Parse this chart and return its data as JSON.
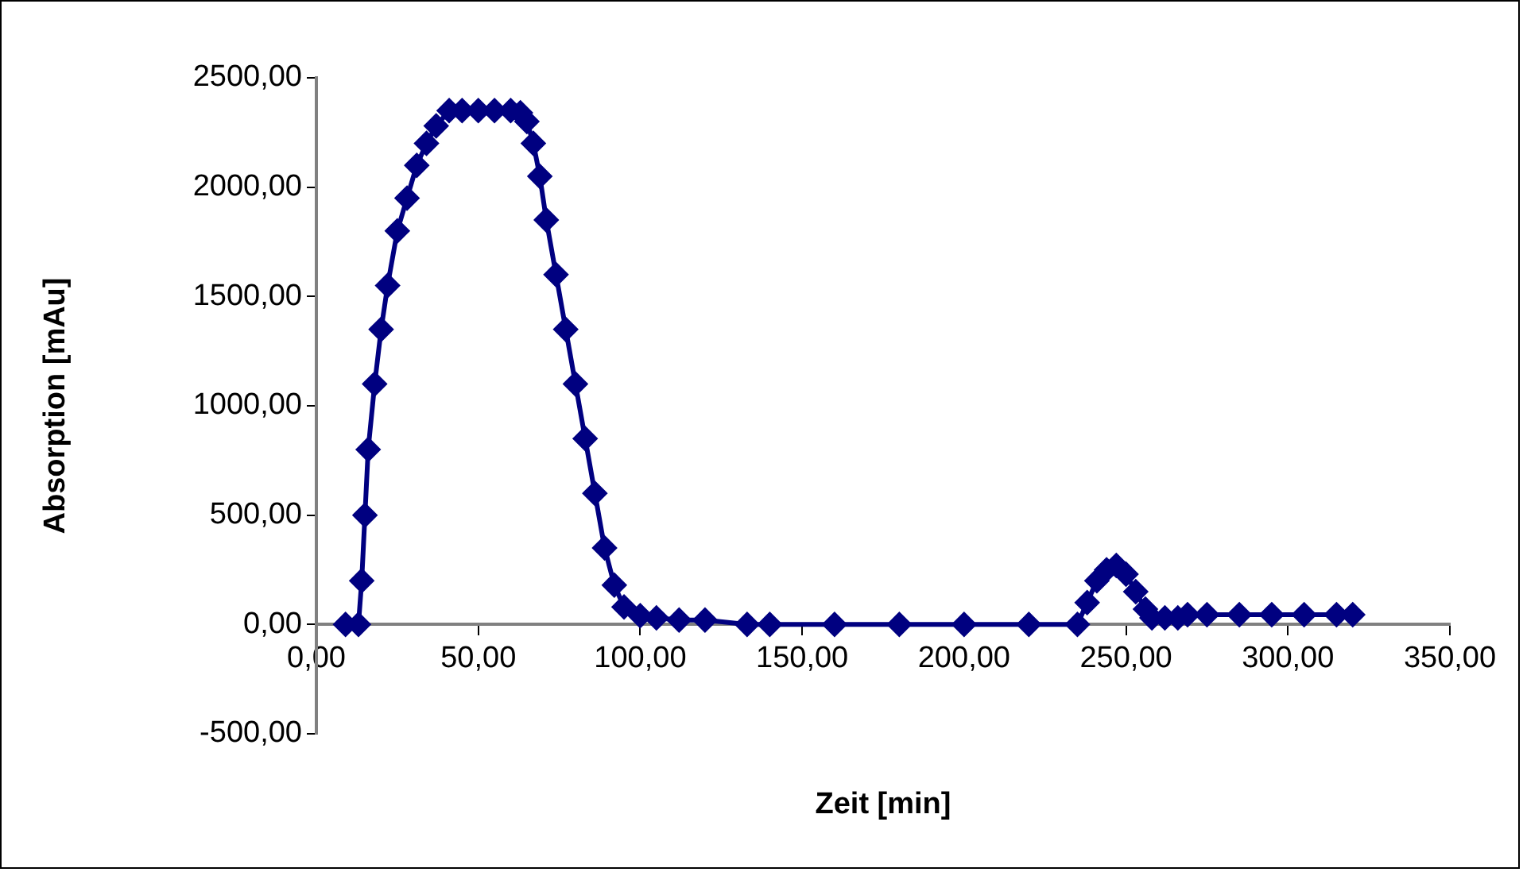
{
  "chart_data": {
    "type": "line",
    "xlabel": "Zeit [min]",
    "ylabel": "Absorption [mAu]",
    "marker": "diamond",
    "line_style": "solid",
    "grid": false,
    "legend": false,
    "xlim": [
      0,
      350
    ],
    "xticks": [
      {
        "value": 0,
        "label": "0,00"
      },
      {
        "value": 50,
        "label": "50,00"
      },
      {
        "value": 100,
        "label": "100,00"
      },
      {
        "value": 150,
        "label": "150,00"
      },
      {
        "value": 200,
        "label": "200,00"
      },
      {
        "value": 250,
        "label": "250,00"
      },
      {
        "value": 300,
        "label": "300,00"
      },
      {
        "value": 350,
        "label": "350,00"
      }
    ],
    "ylim": [
      -500,
      2500
    ],
    "yticks": [
      {
        "value": -500,
        "label": "-500,00"
      },
      {
        "value": 0,
        "label": "0,00"
      },
      {
        "value": 500,
        "label": "500,00"
      },
      {
        "value": 1000,
        "label": "1000,00"
      },
      {
        "value": 1500,
        "label": "1500,00"
      },
      {
        "value": 2000,
        "label": "2000,00"
      },
      {
        "value": 2500,
        "label": "2500,00"
      }
    ],
    "series": [
      {
        "color": "#000080",
        "x": [
          9,
          13,
          14,
          15,
          16,
          18,
          20,
          22,
          25,
          28,
          31,
          34,
          37,
          41,
          45,
          50,
          55,
          60,
          63,
          65,
          67,
          69,
          71,
          74,
          77,
          80,
          83,
          86,
          89,
          92,
          95,
          100,
          105,
          112,
          120,
          133,
          140,
          160,
          180,
          200,
          220,
          235,
          238,
          241,
          244,
          247,
          250,
          253,
          256,
          258,
          262,
          266,
          269,
          275,
          285,
          295,
          305,
          315,
          320
        ],
        "values": [
          0,
          0,
          200,
          500,
          800,
          1100,
          1350,
          1550,
          1800,
          1950,
          2100,
          2200,
          2280,
          2350,
          2350,
          2350,
          2350,
          2350,
          2340,
          2300,
          2200,
          2050,
          1850,
          1600,
          1350,
          1100,
          850,
          600,
          350,
          180,
          80,
          40,
          30,
          20,
          20,
          0,
          0,
          0,
          0,
          0,
          0,
          0,
          100,
          200,
          250,
          270,
          230,
          150,
          70,
          30,
          30,
          30,
          45,
          45,
          45,
          45,
          45,
          45,
          45
        ]
      }
    ]
  }
}
